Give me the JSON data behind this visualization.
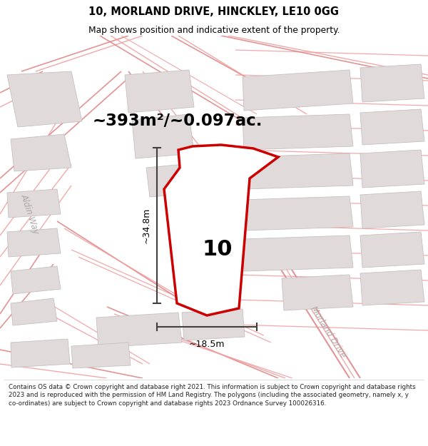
{
  "title_line1": "10, MORLAND DRIVE, HINCKLEY, LE10 0GG",
  "title_line2": "Map shows position and indicative extent of the property.",
  "area_label": "~393m²/~0.097ac.",
  "number_label": "10",
  "dim_vertical": "~34.8m",
  "dim_horizontal": "~18.5m",
  "road_label_left": "Aldin Way",
  "road_label_right": "Morland Drive",
  "footer": "Contains OS data © Crown copyright and database right 2021. This information is subject to Crown copyright and database rights 2023 and is reproduced with the permission of HM Land Registry. The polygons (including the associated geometry, namely x, y co-ordinates) are subject to Crown copyright and database rights 2023 Ordnance Survey 100026316.",
  "bg_color": "#ffffff",
  "map_bg": "#ffffff",
  "road_line_color": "#f0a0a0",
  "road_line_color2": "#e08888",
  "building_color": "#e0dada",
  "building_edge": "#c8c0c0",
  "highlight_color": "#cc0000",
  "highlight_fill": "#ffffff",
  "dim_line_color": "#404040",
  "text_color": "#000000",
  "road_text_color": "#b0a8a8",
  "footer_text_color": "#222222"
}
